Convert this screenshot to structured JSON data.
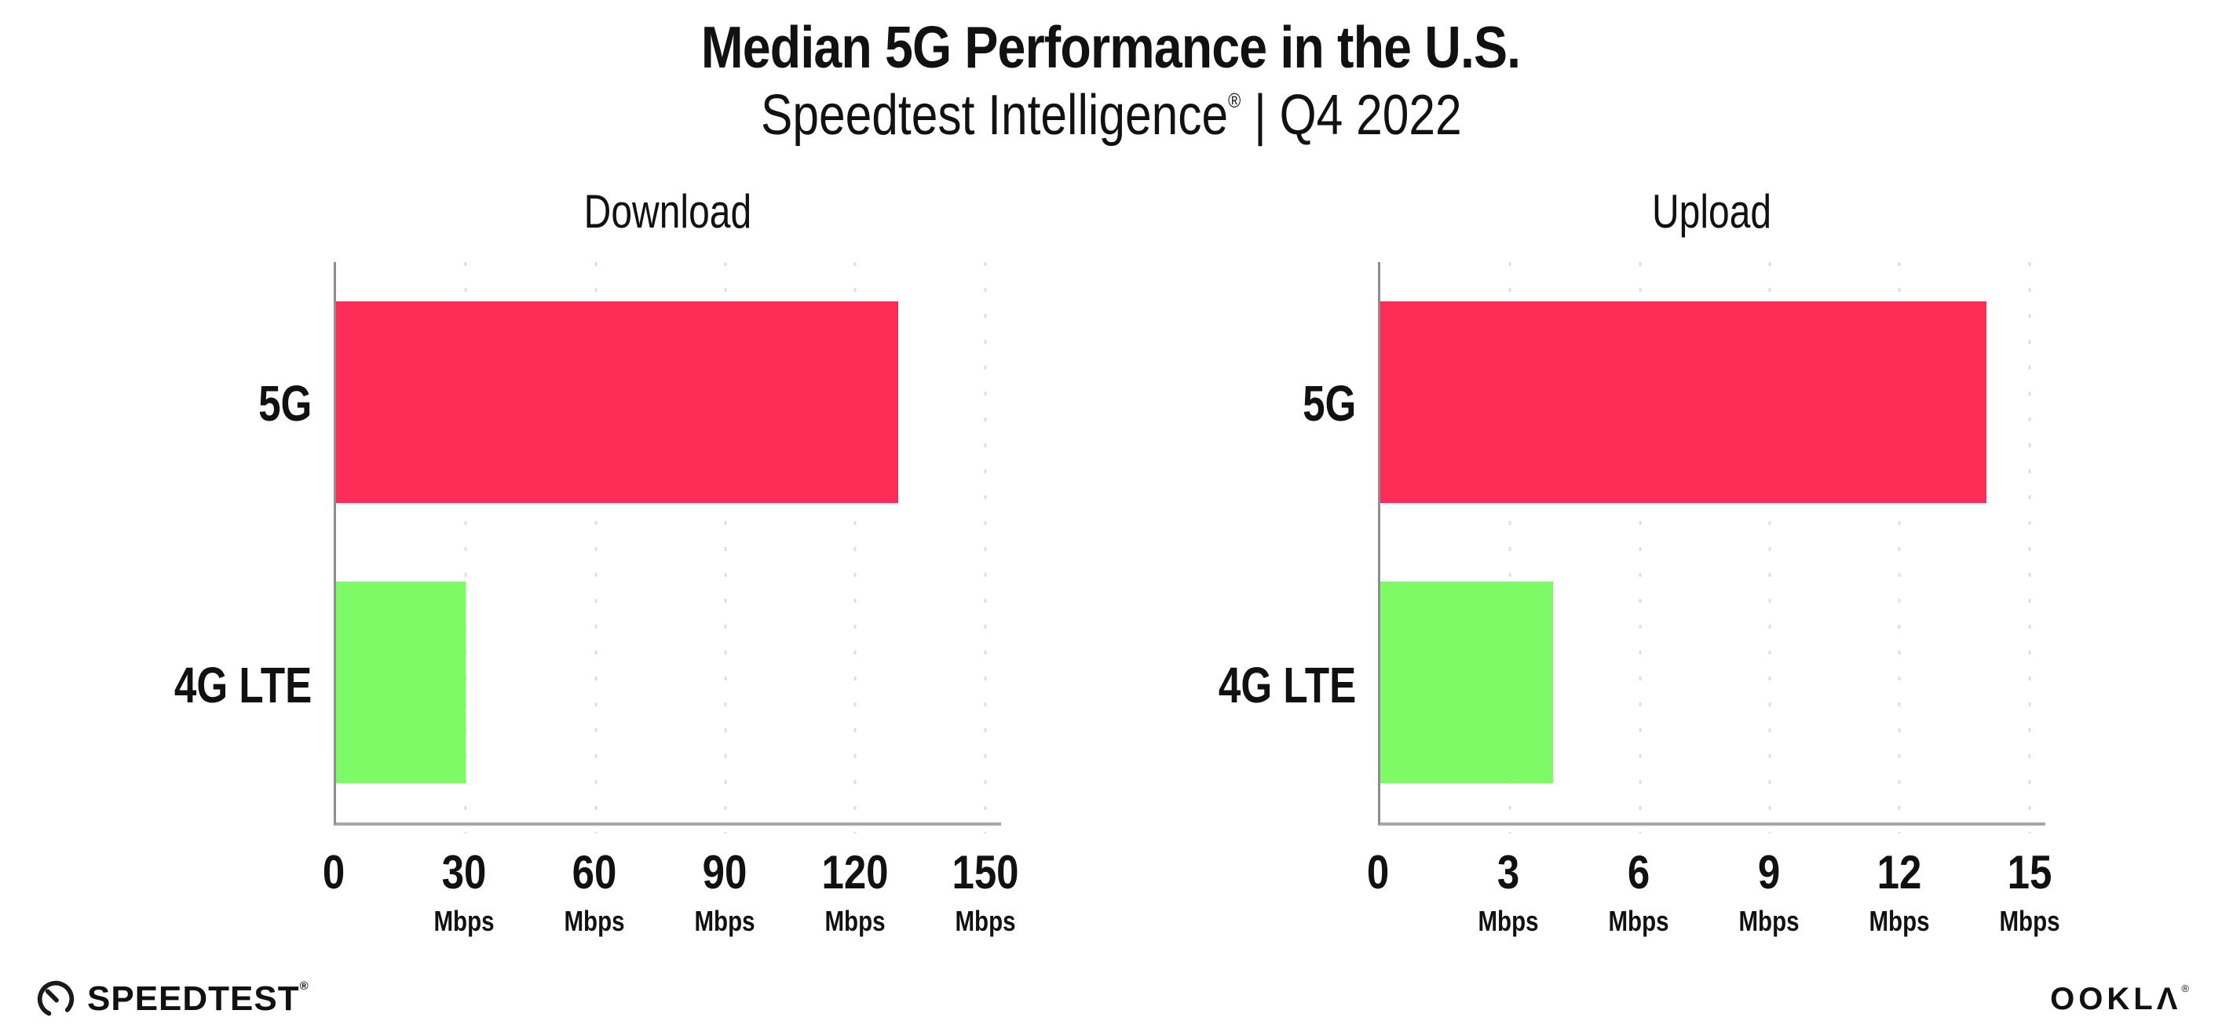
{
  "header": {
    "title": "Median 5G Performance in the U.S.",
    "subtitle_main": "Speedtest Intelligence",
    "subtitle_reg": "®",
    "subtitle_rest": " | Q4 2022"
  },
  "chart_data": [
    {
      "type": "bar",
      "orientation": "horizontal",
      "title": "Download",
      "categories": [
        "5G",
        "4G LTE"
      ],
      "values": [
        130,
        30
      ],
      "unit": "Mbps",
      "xlim": [
        0,
        150
      ],
      "xticks": [
        0,
        30,
        60,
        90,
        120,
        150
      ],
      "bar_colors": [
        "#fd2c57",
        "#7efa66"
      ],
      "grid": "vertical-dotted",
      "legend": "none"
    },
    {
      "type": "bar",
      "orientation": "horizontal",
      "title": "Upload",
      "categories": [
        "5G",
        "4G LTE"
      ],
      "values": [
        14,
        4
      ],
      "unit": "Mbps",
      "xlim": [
        0,
        15
      ],
      "xticks": [
        0,
        3,
        6,
        9,
        12,
        15
      ],
      "bar_colors": [
        "#fd2c57",
        "#7efa66"
      ],
      "grid": "vertical-dotted",
      "legend": "none"
    }
  ],
  "footer": {
    "speedtest_label": "SPEEDTEST",
    "speedtest_mark": "®",
    "ookla_label": "OOKLΛ",
    "ookla_mark": "®"
  }
}
